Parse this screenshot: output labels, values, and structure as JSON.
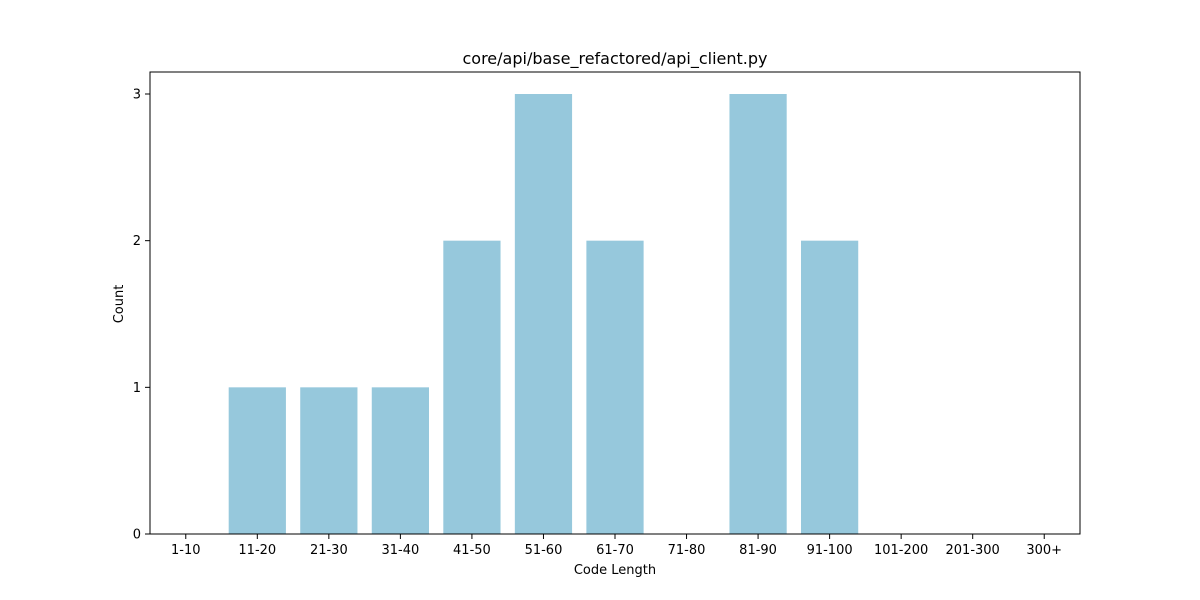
{
  "chart_data": {
    "type": "bar",
    "title": "core/api/base_refactored/api_client.py",
    "xlabel": "Code Length",
    "ylabel": "Count",
    "categories": [
      "1-10",
      "11-20",
      "21-30",
      "31-40",
      "41-50",
      "51-60",
      "61-70",
      "71-80",
      "81-90",
      "91-100",
      "101-200",
      "201-300",
      "300+"
    ],
    "values": [
      0,
      1,
      1,
      1,
      2,
      3,
      2,
      0,
      3,
      2,
      0,
      0,
      0
    ],
    "ylim": [
      0,
      3.15
    ],
    "yticks": [
      "0",
      "1",
      "2",
      "3"
    ],
    "bar_color": "#96c8dc",
    "grid": false,
    "legend": "none"
  }
}
